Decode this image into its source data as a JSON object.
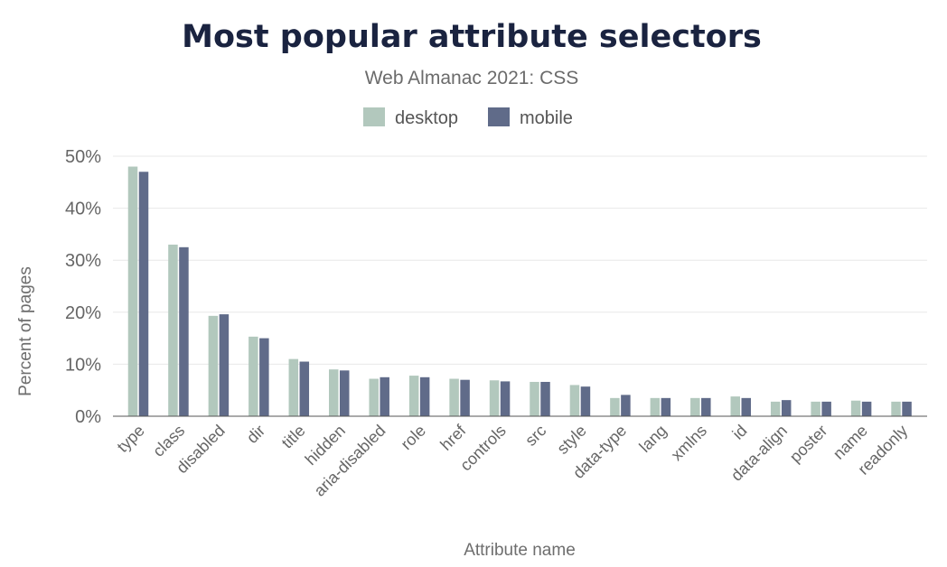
{
  "chart_data": {
    "type": "bar",
    "title": "Most popular attribute selectors",
    "subtitle": "Web Almanac 2021: CSS",
    "xlabel": "Attribute name",
    "ylabel": "Percent of pages",
    "ylim": [
      0,
      50
    ],
    "yticks": [
      "0%",
      "10%",
      "20%",
      "30%",
      "40%",
      "50%"
    ],
    "yticks_values": [
      0,
      10,
      20,
      30,
      40,
      50
    ],
    "grid": true,
    "legend_position": "top-center",
    "categories": [
      "type",
      "class",
      "disabled",
      "dir",
      "title",
      "hidden",
      "aria-disabled",
      "role",
      "href",
      "controls",
      "src",
      "style",
      "data-type",
      "lang",
      "xmlns",
      "id",
      "data-align",
      "poster",
      "name",
      "readonly"
    ],
    "series": [
      {
        "name": "desktop",
        "color": "#b2c8bd",
        "values": [
          48,
          33,
          19.3,
          15.3,
          11,
          9,
          7.2,
          7.8,
          7.2,
          6.9,
          6.6,
          6,
          3.5,
          3.5,
          3.5,
          3.8,
          2.8,
          2.8,
          3,
          2.8
        ]
      },
      {
        "name": "mobile",
        "color": "#606b89",
        "values": [
          47,
          32.5,
          19.6,
          15,
          10.5,
          8.8,
          7.5,
          7.5,
          7,
          6.7,
          6.6,
          5.7,
          4.1,
          3.5,
          3.5,
          3.5,
          3.1,
          2.8,
          2.8,
          2.8
        ]
      }
    ]
  }
}
